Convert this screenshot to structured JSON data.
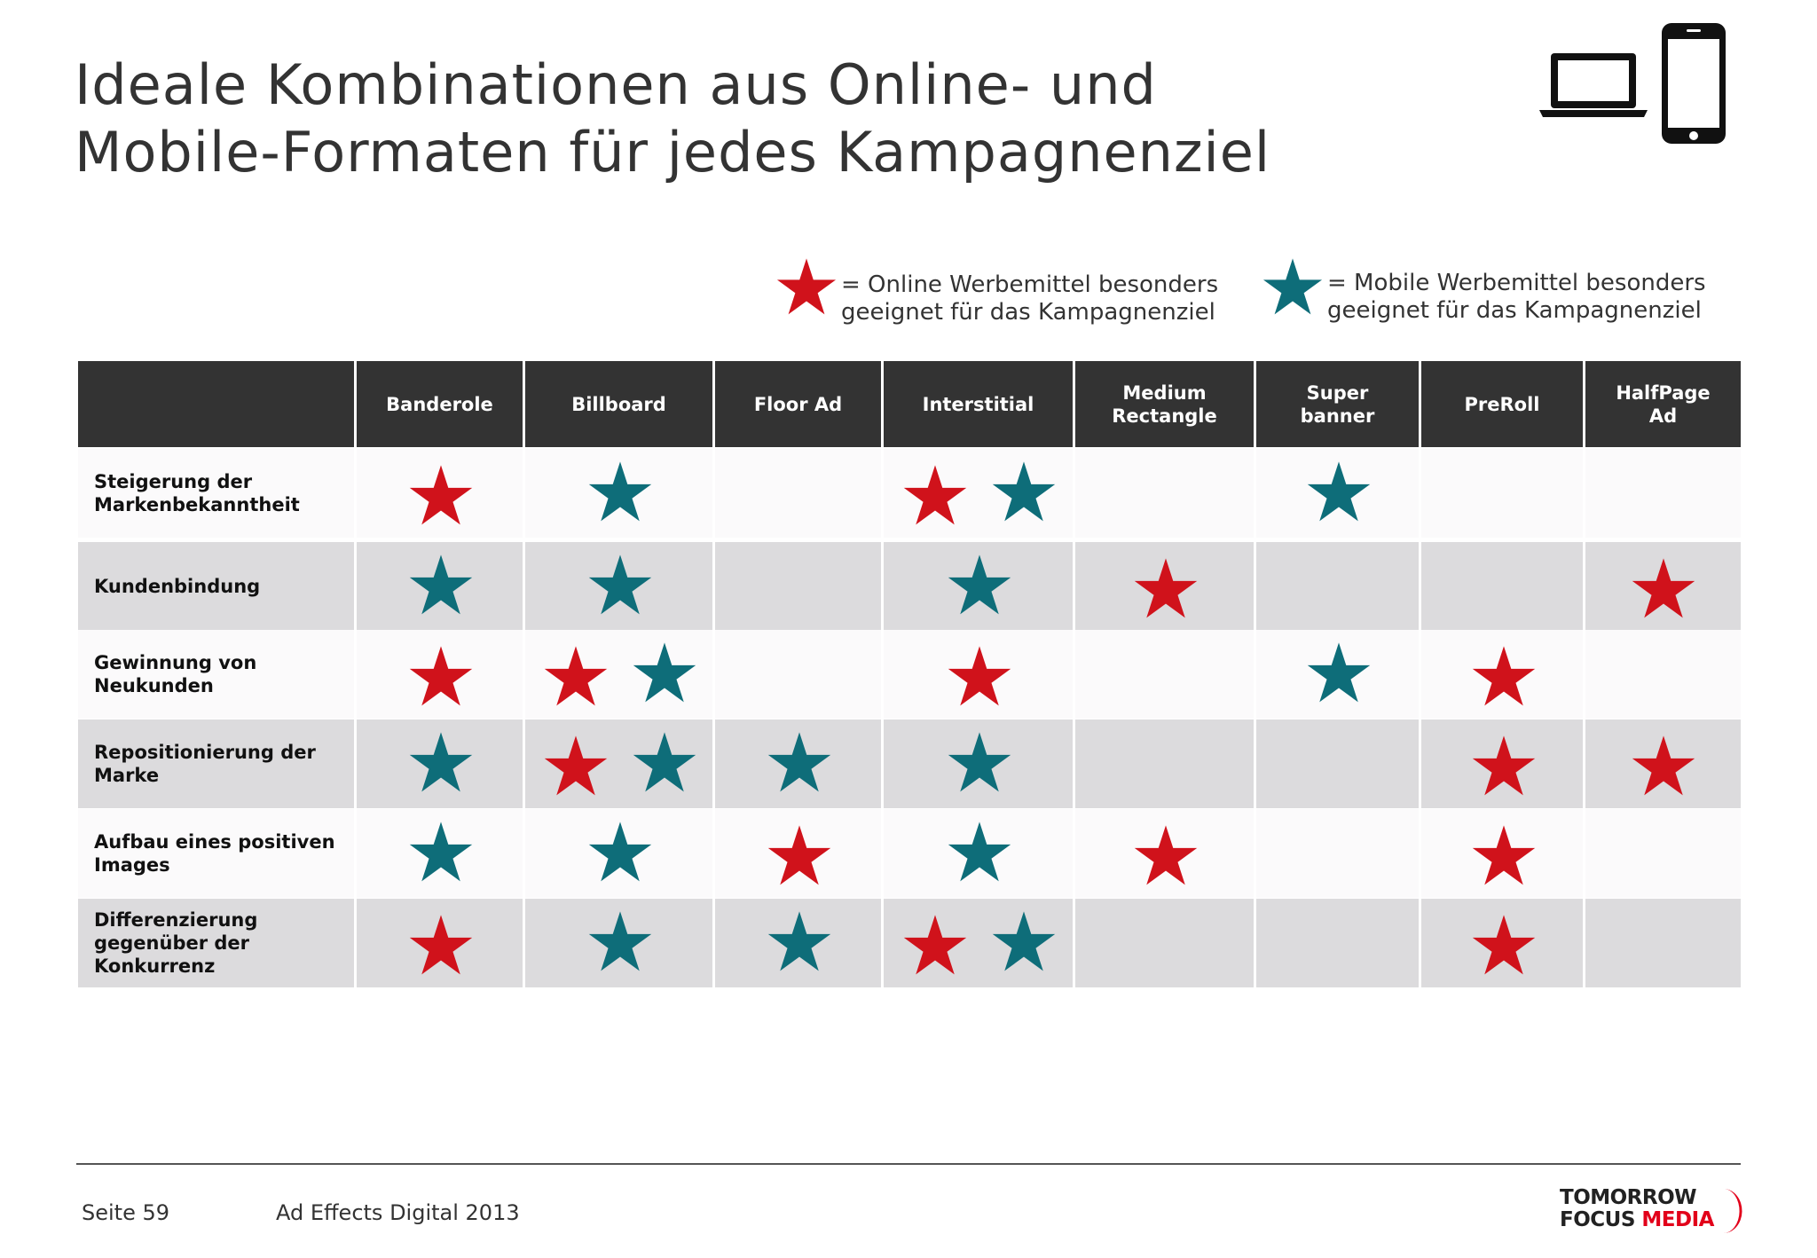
{
  "title": {
    "line1": "Ideale Kombinationen aus Online- und",
    "line2": "Mobile-Formaten für jedes Kampagnenziel"
  },
  "icons": [
    "laptop-icon",
    "smartphone-icon"
  ],
  "colors": {
    "online_star": "#d0121b",
    "mobile_star": "#0e6d79",
    "header_bg": "#333333",
    "shaded_row": "#dcdbdd",
    "plain_row": "#fbfafb",
    "brand_red": "#e2001a"
  },
  "legend": {
    "online": {
      "line1": "= Online Werbemittel besonders",
      "line2": "geeignet  für das Kampagnenziel"
    },
    "mobile": {
      "line1": "= Mobile Werbemittel besonders",
      "line2": "geeignet für das Kampagnenziel"
    }
  },
  "table": {
    "columns": [
      "Banderole",
      "Billboard",
      "Floor Ad",
      "Interstitial",
      "Medium\nRectangle",
      "Super\nbanner",
      "PreRoll",
      "HalfPage\nAd"
    ],
    "rows": [
      {
        "label": "Steigerung der\nMarkenbekanntheit",
        "cells": [
          [
            "online"
          ],
          [
            "mobile"
          ],
          [],
          [
            "online",
            "mobile"
          ],
          [],
          [
            "mobile"
          ],
          [],
          []
        ]
      },
      {
        "label": "Kundenbindung",
        "cells": [
          [
            "mobile"
          ],
          [
            "mobile"
          ],
          [],
          [
            "mobile"
          ],
          [
            "online"
          ],
          [],
          [],
          [
            "online"
          ]
        ]
      },
      {
        "label": "Gewinnung von\nNeukunden",
        "cells": [
          [
            "online"
          ],
          [
            "online",
            "mobile"
          ],
          [],
          [
            "online"
          ],
          [],
          [
            "mobile"
          ],
          [
            "online"
          ],
          []
        ]
      },
      {
        "label": "Repositionierung der\nMarke",
        "cells": [
          [
            "mobile"
          ],
          [
            "online",
            "mobile"
          ],
          [
            "mobile"
          ],
          [
            "mobile"
          ],
          [],
          [],
          [
            "online"
          ],
          [
            "online"
          ]
        ]
      },
      {
        "label": "Aufbau eines positiven\nImages",
        "cells": [
          [
            "mobile"
          ],
          [
            "mobile"
          ],
          [
            "online"
          ],
          [
            "mobile"
          ],
          [
            "online"
          ],
          [],
          [
            "online"
          ],
          []
        ]
      },
      {
        "label": "Differenzierung\ngegenüber der\nKonkurrenz",
        "cells": [
          [
            "online"
          ],
          [
            "mobile"
          ],
          [
            "mobile"
          ],
          [
            "online",
            "mobile"
          ],
          [],
          [],
          [
            "online"
          ],
          []
        ]
      }
    ]
  },
  "footer": {
    "page": "Seite 59",
    "source": "Ad Effects Digital 2013",
    "logo_line1": "TOMORROW",
    "logo_line2a": "FOCUS ",
    "logo_line2b": "MEDIA"
  }
}
